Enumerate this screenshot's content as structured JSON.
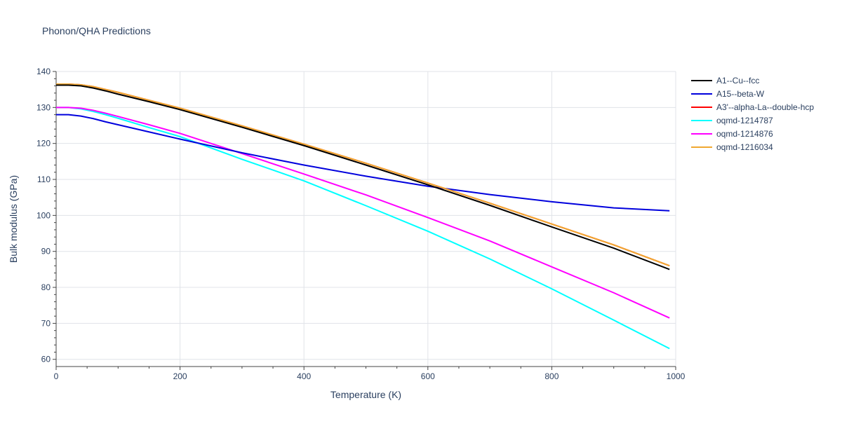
{
  "chart_data": {
    "type": "line",
    "title": "Phonon/QHA Predictions",
    "xlabel": "Temperature (K)",
    "ylabel": "Bulk modulus (GPa)",
    "xlim": [
      0,
      1000
    ],
    "ylim": [
      58,
      140
    ],
    "xticks": [
      0,
      200,
      400,
      600,
      800,
      1000
    ],
    "yticks": [
      60,
      70,
      80,
      90,
      100,
      110,
      120,
      130,
      140
    ],
    "grid": true,
    "legend_position": "top-right",
    "series": [
      {
        "name": "A1--Cu--fcc",
        "color": "#000000",
        "x": [
          0,
          20,
          40,
          60,
          80,
          100,
          150,
          200,
          300,
          400,
          500,
          600,
          700,
          800,
          900,
          990
        ],
        "y": [
          136.2,
          136.2,
          136.0,
          135.4,
          134.6,
          133.7,
          131.6,
          129.4,
          124.5,
          119.4,
          114.0,
          108.5,
          102.8,
          96.8,
          90.9,
          85.0
        ]
      },
      {
        "name": "A15--beta-W",
        "color": "#0000dd",
        "x": [
          0,
          20,
          40,
          60,
          80,
          100,
          150,
          200,
          300,
          400,
          500,
          600,
          700,
          800,
          900,
          990
        ],
        "y": [
          128.0,
          128.0,
          127.6,
          126.9,
          126.0,
          125.2,
          123.2,
          121.2,
          117.4,
          114.0,
          110.9,
          108.1,
          105.8,
          103.8,
          102.1,
          101.3
        ]
      },
      {
        "name": "A3'--alpha-La--double-hcp",
        "color": "#ff0000",
        "x": [
          0,
          20,
          40,
          60,
          80,
          100,
          150,
          200,
          300,
          400,
          500,
          600,
          700,
          800,
          900,
          990
        ],
        "y": [
          136.5,
          136.5,
          136.3,
          135.8,
          135.0,
          134.2,
          132.0,
          129.8,
          124.9,
          119.8,
          114.5,
          109.0,
          103.4,
          97.6,
          91.8,
          86.0
        ]
      },
      {
        "name": "oqmd-1214787",
        "color": "#00ffff",
        "x": [
          0,
          20,
          40,
          60,
          80,
          100,
          150,
          200,
          300,
          400,
          500,
          600,
          700,
          800,
          900,
          990
        ],
        "y": [
          130.0,
          130.0,
          129.6,
          128.9,
          128.0,
          127.0,
          124.4,
          121.9,
          115.6,
          109.6,
          102.7,
          95.6,
          87.9,
          79.6,
          70.9,
          63.0
        ]
      },
      {
        "name": "oqmd-1214876",
        "color": "#ff00ff",
        "x": [
          0,
          20,
          40,
          60,
          80,
          100,
          150,
          200,
          300,
          400,
          500,
          600,
          700,
          800,
          900,
          990
        ],
        "y": [
          130.0,
          130.0,
          129.8,
          129.2,
          128.4,
          127.5,
          125.2,
          122.8,
          117.2,
          111.5,
          105.7,
          99.4,
          92.9,
          85.7,
          78.5,
          71.5
        ]
      },
      {
        "name": "oqmd-1216034",
        "color": "#f0a830",
        "x": [
          0,
          20,
          40,
          60,
          80,
          100,
          150,
          200,
          300,
          400,
          500,
          600,
          700,
          800,
          900,
          990
        ],
        "y": [
          136.5,
          136.5,
          136.3,
          135.8,
          135.0,
          134.2,
          132.0,
          129.8,
          124.9,
          119.8,
          114.5,
          109.0,
          103.4,
          97.6,
          91.8,
          86.0
        ]
      }
    ]
  }
}
